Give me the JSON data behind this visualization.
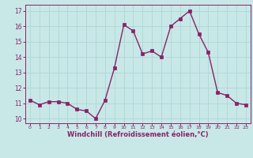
{
  "x": [
    0,
    1,
    2,
    3,
    4,
    5,
    6,
    7,
    8,
    9,
    10,
    11,
    12,
    13,
    14,
    15,
    16,
    17,
    18,
    19,
    20,
    21,
    22,
    23
  ],
  "y": [
    11.2,
    10.9,
    11.1,
    11.1,
    11.0,
    10.6,
    10.5,
    10.0,
    11.2,
    13.3,
    16.1,
    15.7,
    14.2,
    14.4,
    14.0,
    16.0,
    16.5,
    17.0,
    15.5,
    14.3,
    11.7,
    11.5,
    11.0,
    10.9
  ],
  "line_color": "#882266",
  "marker_color": "#882266",
  "bg_color": "#c8e8e8",
  "grid_color": "#b0d8d8",
  "xlabel": "Windchill (Refroidissement éolien,°C)",
  "xlabel_color": "#882266",
  "tick_color": "#882266",
  "spine_color": "#882266",
  "ylim": [
    9.7,
    17.4
  ],
  "xlim": [
    -0.5,
    23.5
  ],
  "yticks": [
    10,
    11,
    12,
    13,
    14,
    15,
    16,
    17
  ],
  "xticks": [
    0,
    1,
    2,
    3,
    4,
    5,
    6,
    7,
    8,
    9,
    10,
    11,
    12,
    13,
    14,
    15,
    16,
    17,
    18,
    19,
    20,
    21,
    22,
    23
  ],
  "title_fontsize": 6,
  "xlabel_fontsize": 6,
  "ytick_fontsize": 5.5,
  "xtick_fontsize": 4.5,
  "linewidth": 1.0,
  "markersize": 2.5
}
